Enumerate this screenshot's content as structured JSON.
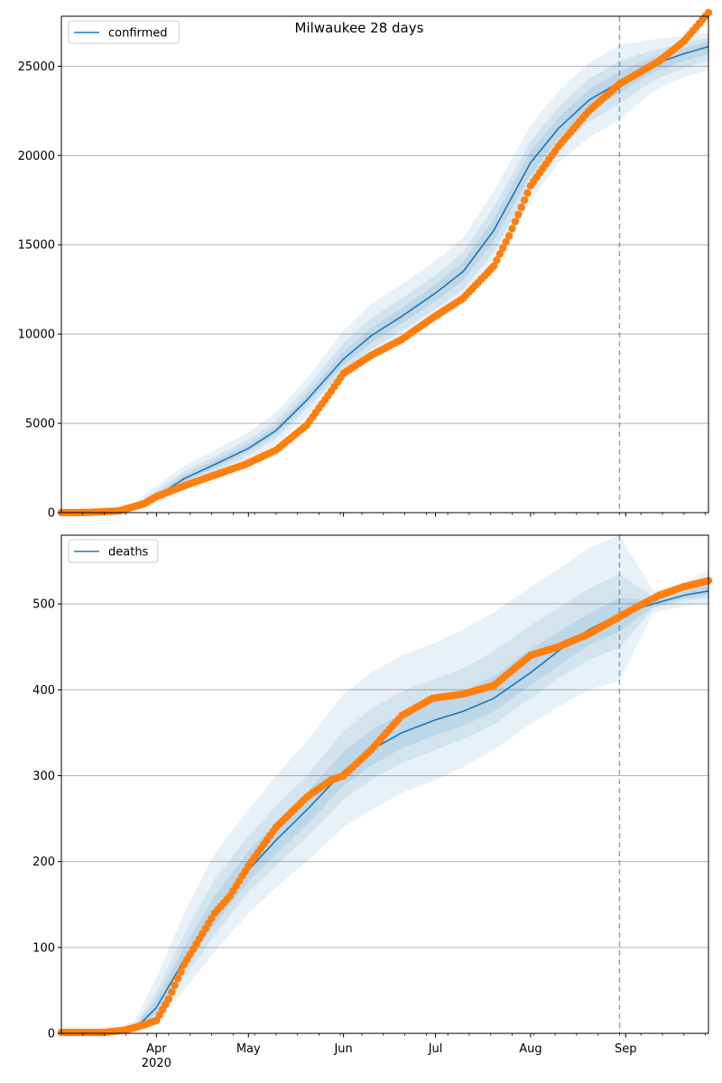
{
  "title": "Milwaukee 28 days",
  "colors": {
    "model_line": "#1f77b4",
    "band": "#1f77b4",
    "observed": "#ff7f0e",
    "grid": "#b0b0b0",
    "forecast_marker": "#1f77b4"
  },
  "x_axis": {
    "start_date": "2020-03-01",
    "end_date": "2020-09-28",
    "month_ticks": [
      {
        "date": "2020-04-01",
        "label": "Apr"
      },
      {
        "date": "2020-05-01",
        "label": "May"
      },
      {
        "date": "2020-06-01",
        "label": "Jun"
      },
      {
        "date": "2020-07-01",
        "label": "Jul"
      },
      {
        "date": "2020-08-01",
        "label": "Aug"
      },
      {
        "date": "2020-09-01",
        "label": "Sep"
      }
    ],
    "year_label": "2020",
    "forecast_start": "2020-08-30"
  },
  "chart_data": [
    {
      "type": "line",
      "id": "confirmed",
      "legend": "confirmed",
      "legend_position": "top-left",
      "ylim": [
        0,
        27800
      ],
      "yticks": [
        0,
        5000,
        10000,
        15000,
        20000,
        25000
      ],
      "grid": "horizontal",
      "model": {
        "x": [
          "2020-03-01",
          "2020-03-15",
          "2020-03-25",
          "2020-04-01",
          "2020-04-10",
          "2020-04-20",
          "2020-05-01",
          "2020-05-10",
          "2020-05-20",
          "2020-06-01",
          "2020-06-10",
          "2020-06-20",
          "2020-07-01",
          "2020-07-10",
          "2020-07-20",
          "2020-08-01",
          "2020-08-10",
          "2020-08-20",
          "2020-08-30",
          "2020-09-10",
          "2020-09-20",
          "2020-09-28"
        ],
        "y": [
          0,
          40,
          300,
          900,
          1900,
          2700,
          3600,
          4600,
          6300,
          8600,
          9900,
          11000,
          12300,
          13500,
          15800,
          19600,
          21500,
          23100,
          24100,
          25100,
          25700,
          26100
        ]
      },
      "bands": [
        {
          "level": "outer",
          "lower": [
            0,
            0,
            100,
            500,
            1300,
            2000,
            2900,
            3800,
            5400,
            7400,
            8600,
            9600,
            10700,
            11800,
            13800,
            17400,
            19600,
            21000,
            22000,
            23600,
            24400,
            24800
          ],
          "upper": [
            0,
            100,
            600,
            1500,
            2600,
            3500,
            4500,
            5600,
            7500,
            10200,
            11700,
            12800,
            14100,
            15400,
            18000,
            21700,
            23600,
            25200,
            26200,
            26500,
            26700,
            26900
          ]
        },
        {
          "level": "middle",
          "lower": [
            0,
            10,
            180,
            650,
            1550,
            2300,
            3200,
            4150,
            5800,
            7900,
            9150,
            10200,
            11400,
            12500,
            14600,
            18300,
            20400,
            21900,
            22900,
            24200,
            24900,
            25300
          ],
          "upper": [
            0,
            70,
            450,
            1250,
            2300,
            3150,
            4100,
            5150,
            7000,
            9500,
            10900,
            12000,
            13300,
            14600,
            17100,
            20800,
            22700,
            24300,
            25300,
            25900,
            26300,
            26600
          ]
        },
        {
          "level": "inner",
          "lower": [
            0,
            25,
            240,
            780,
            1720,
            2500,
            3400,
            4380,
            6050,
            8250,
            9500,
            10600,
            11850,
            13000,
            15200,
            18900,
            20950,
            22500,
            23500,
            24650,
            25300,
            25700
          ],
          "upper": [
            0,
            55,
            370,
            1080,
            2100,
            2930,
            3850,
            4850,
            6620,
            9000,
            10350,
            11450,
            12800,
            14050,
            16450,
            20250,
            22100,
            23700,
            24700,
            25500,
            26000,
            26400
          ]
        }
      ],
      "observed": {
        "x": [
          "2020-03-01",
          "2020-03-10",
          "2020-03-20",
          "2020-03-28",
          "2020-04-01",
          "2020-04-10",
          "2020-04-20",
          "2020-04-30",
          "2020-05-10",
          "2020-05-20",
          "2020-05-28",
          "2020-06-01",
          "2020-06-10",
          "2020-06-20",
          "2020-06-30",
          "2020-07-10",
          "2020-07-20",
          "2020-07-25",
          "2020-08-01",
          "2020-08-10",
          "2020-08-20",
          "2020-08-30",
          "2020-09-05",
          "2020-09-12",
          "2020-09-20",
          "2020-09-28"
        ],
        "y": [
          0,
          10,
          100,
          500,
          900,
          1500,
          2100,
          2700,
          3500,
          4900,
          6800,
          7800,
          8800,
          9700,
          10900,
          12000,
          13800,
          15500,
          18300,
          20500,
          22500,
          24000,
          24600,
          25300,
          26400,
          28000
        ]
      }
    },
    {
      "type": "line",
      "id": "deaths",
      "legend": "deaths",
      "legend_position": "top-left",
      "ylim": [
        0,
        580
      ],
      "yticks": [
        0,
        100,
        200,
        300,
        400,
        500
      ],
      "xtick_labels_visible": true,
      "grid": "horizontal",
      "model": {
        "x": [
          "2020-03-01",
          "2020-03-15",
          "2020-03-25",
          "2020-04-01",
          "2020-04-10",
          "2020-04-20",
          "2020-05-01",
          "2020-05-10",
          "2020-05-20",
          "2020-06-01",
          "2020-06-10",
          "2020-06-20",
          "2020-07-01",
          "2020-07-10",
          "2020-07-20",
          "2020-08-01",
          "2020-08-10",
          "2020-08-20",
          "2020-08-30",
          "2020-09-10",
          "2020-09-20",
          "2020-09-28"
        ],
        "y": [
          0,
          0,
          5,
          30,
          85,
          140,
          190,
          225,
          260,
          305,
          330,
          350,
          365,
          375,
          390,
          420,
          445,
          470,
          488,
          500,
          510,
          515
        ]
      },
      "bands": [
        {
          "level": "outer",
          "lower": [
            0,
            0,
            0,
            10,
            50,
            95,
            140,
            170,
            200,
            240,
            260,
            280,
            295,
            310,
            330,
            360,
            380,
            400,
            410,
            490,
            497,
            500
          ],
          "upper": [
            0,
            0,
            15,
            65,
            140,
            210,
            260,
            300,
            340,
            395,
            420,
            440,
            455,
            470,
            490,
            520,
            540,
            565,
            580,
            515,
            525,
            540
          ]
        },
        {
          "level": "middle",
          "lower": [
            0,
            0,
            2,
            18,
            65,
            115,
            165,
            195,
            228,
            272,
            295,
            315,
            330,
            342,
            360,
            390,
            413,
            435,
            449,
            495,
            503,
            507
          ],
          "upper": [
            0,
            0,
            10,
            48,
            115,
            180,
            230,
            265,
            300,
            352,
            378,
            398,
            413,
            425,
            445,
            475,
            495,
            518,
            535,
            508,
            518,
            530
          ]
        },
        {
          "level": "inner",
          "lower": [
            0,
            0,
            3,
            23,
            74,
            127,
            177,
            209,
            243,
            288,
            312,
            332,
            347,
            358,
            375,
            405,
            428,
            452,
            468,
            497,
            506,
            510
          ],
          "upper": [
            0,
            0,
            8,
            40,
            100,
            160,
            212,
            245,
            280,
            328,
            353,
            372,
            387,
            398,
            416,
            447,
            467,
            489,
            507,
            504,
            514,
            523
          ]
        }
      ],
      "observed": {
        "x": [
          "2020-03-01",
          "2020-03-15",
          "2020-03-22",
          "2020-03-28",
          "2020-04-01",
          "2020-04-05",
          "2020-04-10",
          "2020-04-15",
          "2020-04-20",
          "2020-04-25",
          "2020-05-01",
          "2020-05-10",
          "2020-05-20",
          "2020-05-28",
          "2020-06-01",
          "2020-06-10",
          "2020-06-20",
          "2020-06-30",
          "2020-07-10",
          "2020-07-20",
          "2020-08-01",
          "2020-08-10",
          "2020-08-20",
          "2020-08-30",
          "2020-09-05",
          "2020-09-12",
          "2020-09-20",
          "2020-09-28"
        ],
        "y": [
          1,
          1,
          4,
          10,
          15,
          40,
          80,
          110,
          140,
          160,
          195,
          240,
          275,
          295,
          300,
          330,
          370,
          390,
          395,
          405,
          440,
          450,
          465,
          485,
          497,
          510,
          520,
          527
        ]
      }
    }
  ]
}
